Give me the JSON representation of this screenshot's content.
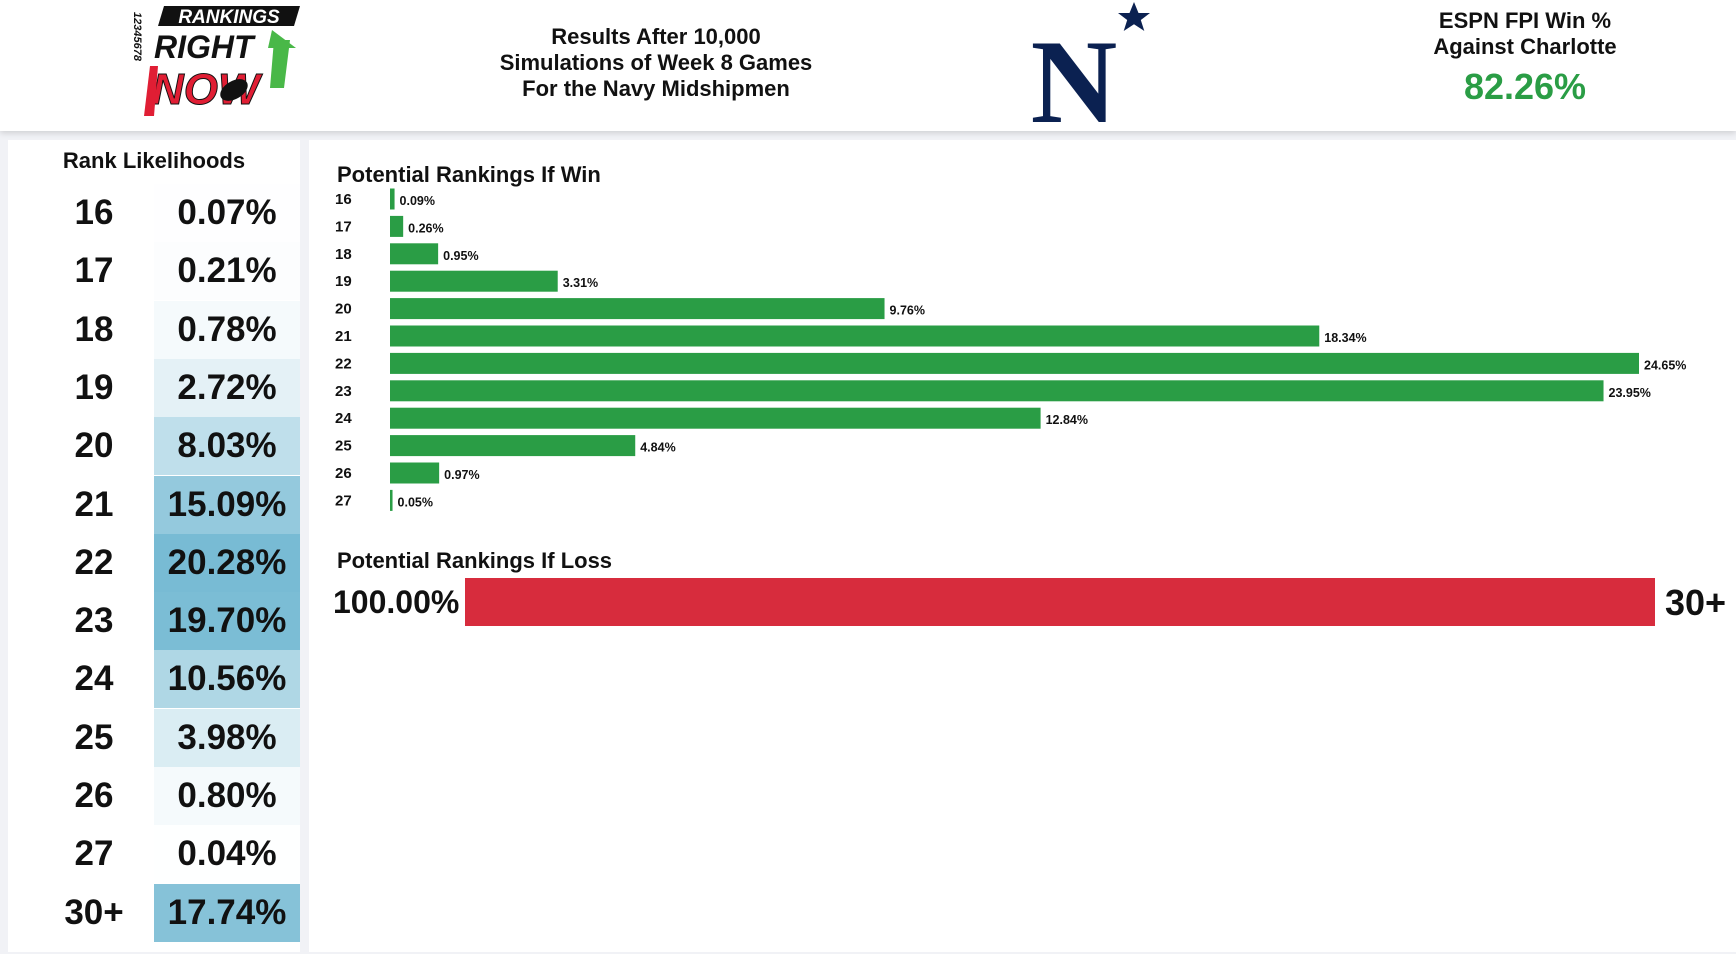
{
  "header": {
    "logo_text": [
      "RANKINGS",
      "RIGHT",
      "NOW",
      "12345678"
    ],
    "subtitle_lines": [
      "Results After 10,000",
      "Simulations of Week 8 Games",
      "For the Navy Midshipmen"
    ],
    "team_logo_letter": "N",
    "fpi_label": "ESPN FPI Win %\nAgainst Charlotte",
    "fpi_value": "82.26%"
  },
  "colors": {
    "win_bar": "#2a9d45",
    "loss_bar": "#d72c3d",
    "fpi_value": "#2a9d45",
    "heat_base": "#a9d4e2",
    "navy": "#0b2151"
  },
  "rank_likelihoods": {
    "title": "Rank Likelihoods",
    "rows": [
      {
        "rank": "16",
        "pct": "0.07%",
        "value": 0.07
      },
      {
        "rank": "17",
        "pct": "0.21%",
        "value": 0.21
      },
      {
        "rank": "18",
        "pct": "0.78%",
        "value": 0.78
      },
      {
        "rank": "19",
        "pct": "2.72%",
        "value": 2.72
      },
      {
        "rank": "20",
        "pct": "8.03%",
        "value": 8.03
      },
      {
        "rank": "21",
        "pct": "15.09%",
        "value": 15.09
      },
      {
        "rank": "22",
        "pct": "20.28%",
        "value": 20.28
      },
      {
        "rank": "23",
        "pct": "19.70%",
        "value": 19.7
      },
      {
        "rank": "24",
        "pct": "10.56%",
        "value": 10.56
      },
      {
        "rank": "25",
        "pct": "3.98%",
        "value": 3.98
      },
      {
        "rank": "26",
        "pct": "0.80%",
        "value": 0.8
      },
      {
        "rank": "27",
        "pct": "0.04%",
        "value": 0.04
      },
      {
        "rank": "30+",
        "pct": "17.74%",
        "value": 17.74
      }
    ]
  },
  "chart_data": [
    {
      "type": "bar",
      "orientation": "horizontal",
      "title": "Potential Rankings If Win",
      "categories": [
        "16",
        "17",
        "18",
        "19",
        "20",
        "21",
        "22",
        "23",
        "24",
        "25",
        "26",
        "27"
      ],
      "values": [
        0.09,
        0.26,
        0.95,
        3.31,
        9.76,
        18.34,
        24.65,
        23.95,
        12.84,
        4.84,
        0.97,
        0.05
      ],
      "data_labels": [
        "0.09%",
        "0.26%",
        "0.95%",
        "3.31%",
        "9.76%",
        "18.34%",
        "24.65%",
        "23.95%",
        "12.84%",
        "4.84%",
        "0.97%",
        "0.05%"
      ],
      "xlim": [
        0,
        24.65
      ],
      "grid": false
    },
    {
      "type": "bar",
      "orientation": "horizontal",
      "title": "Potential Rankings If Loss",
      "categories": [
        "30+"
      ],
      "values": [
        100.0
      ],
      "data_labels": [
        "100.00%"
      ],
      "xlim": [
        0,
        100
      ],
      "grid": false
    }
  ]
}
